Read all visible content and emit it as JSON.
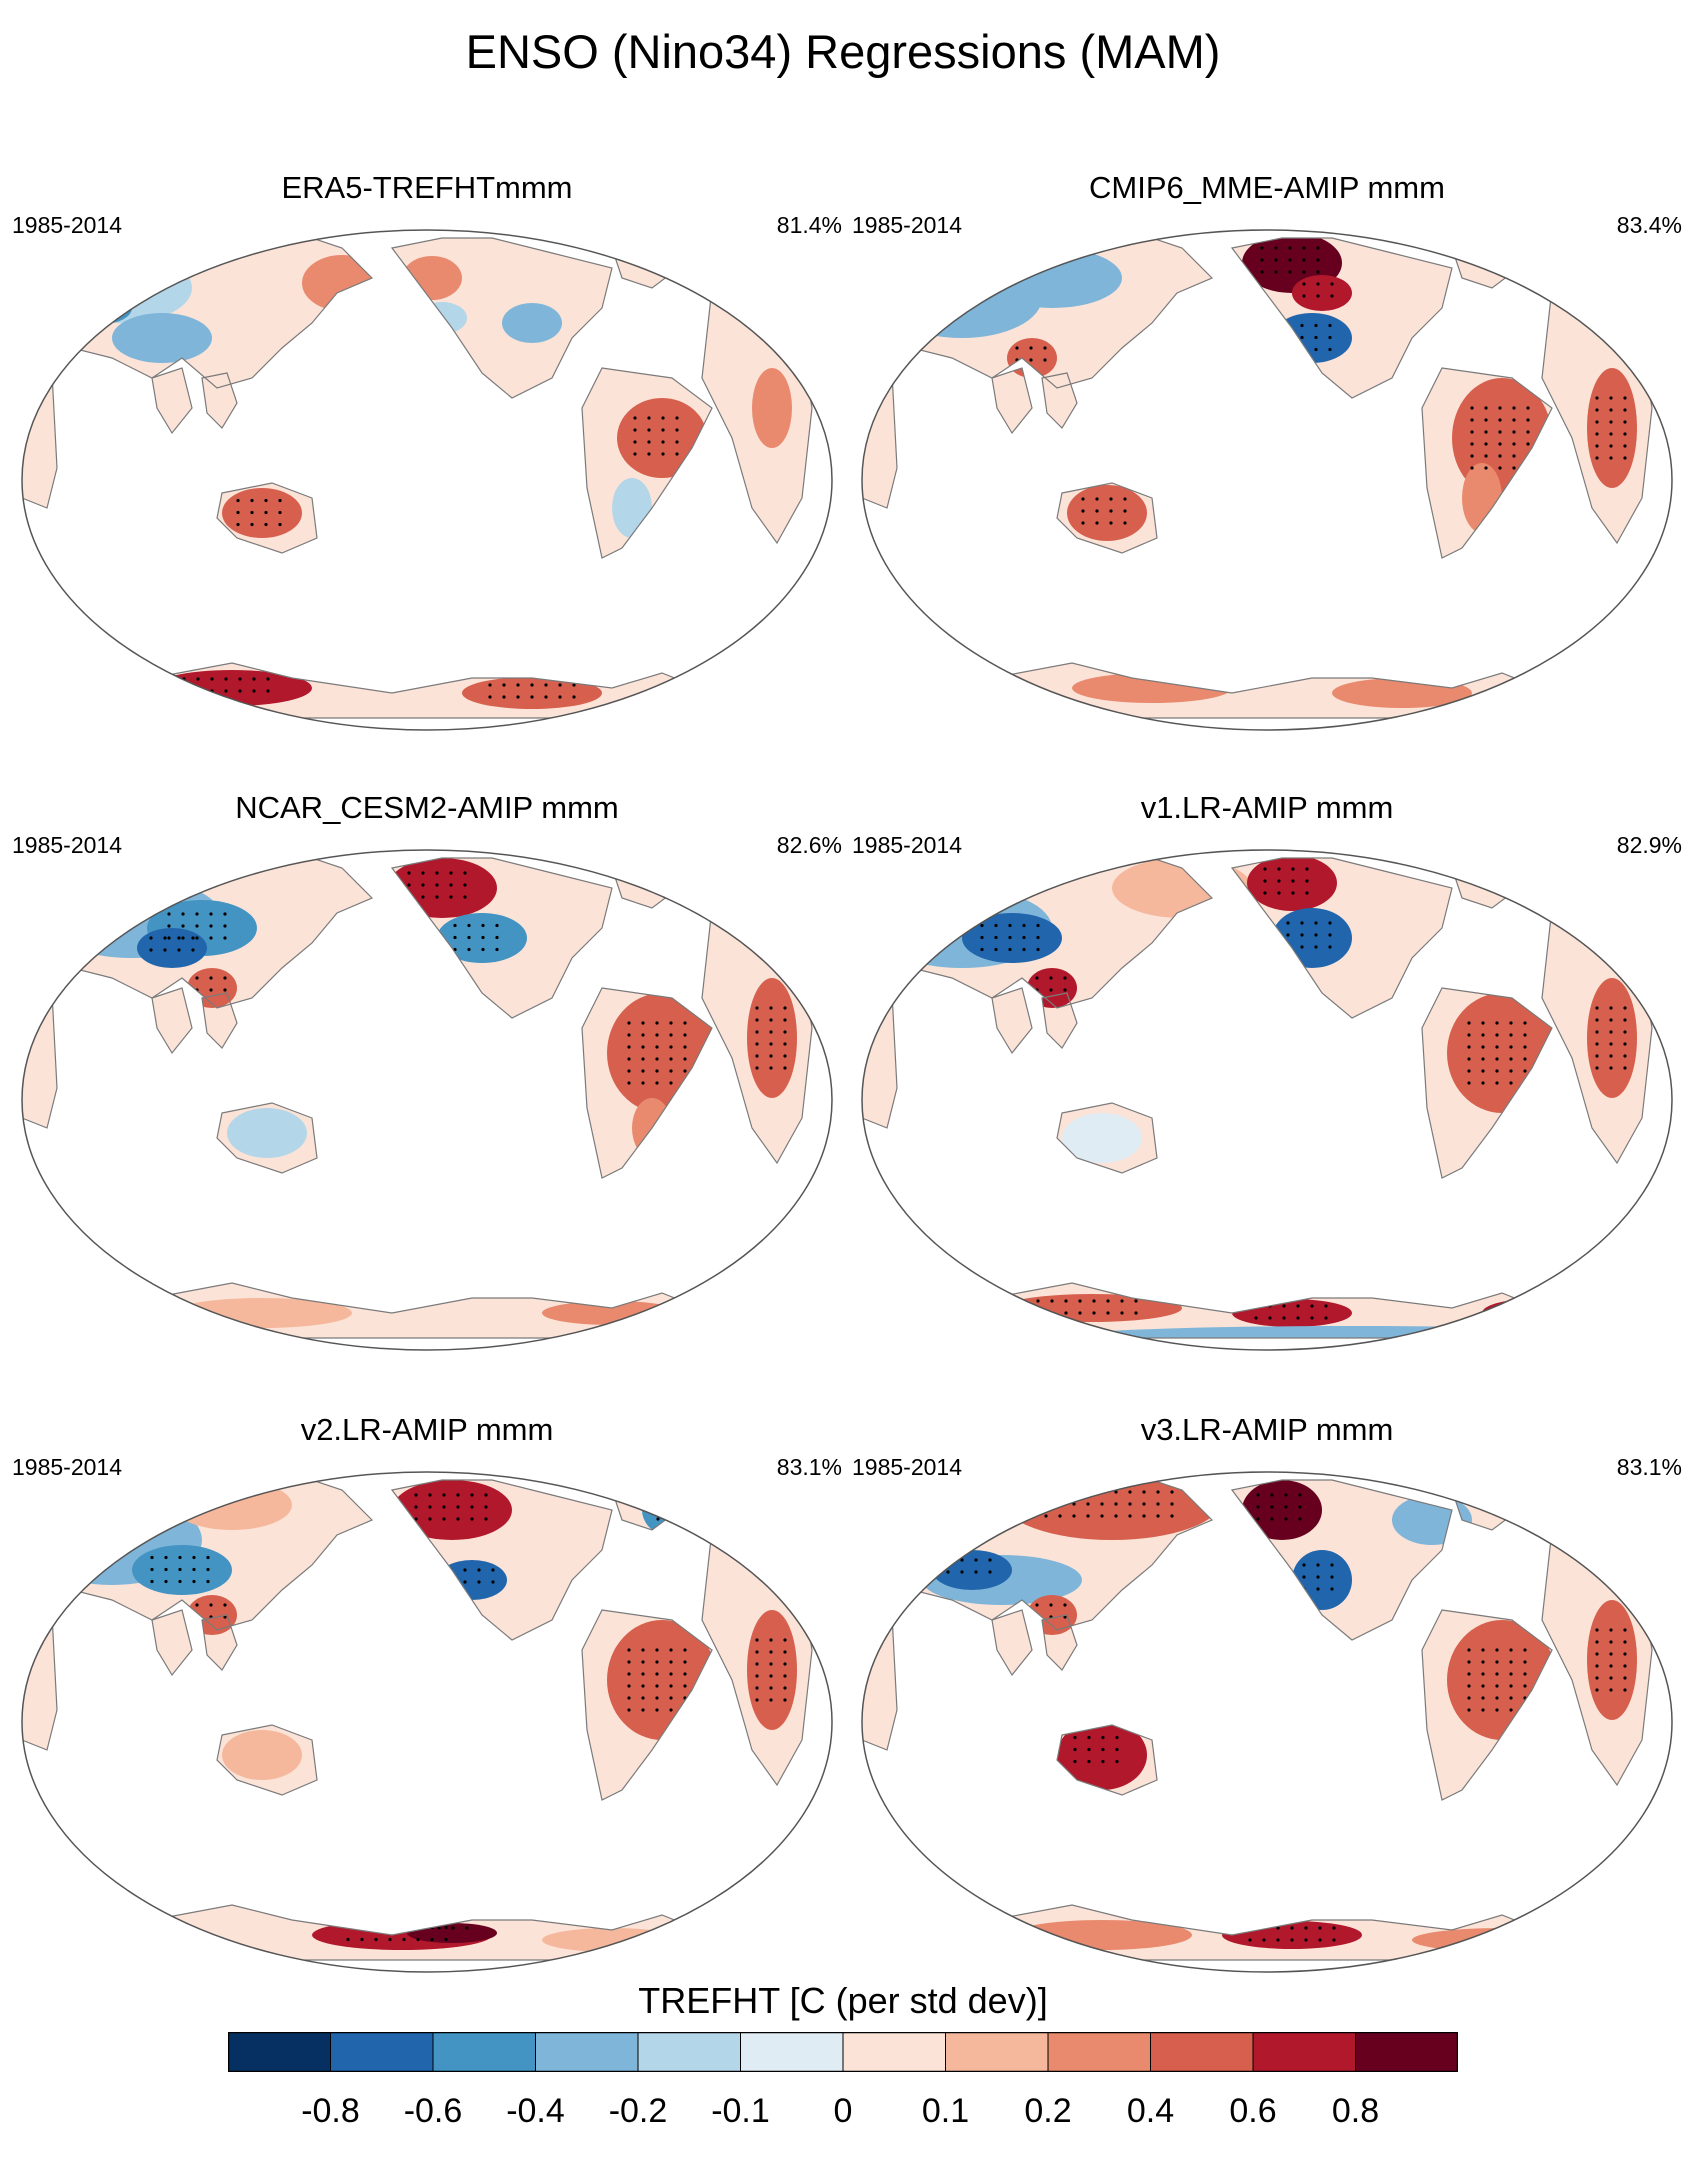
{
  "title": "ENSO (Nino34) Regressions (MAM)",
  "chart_data": {
    "type": "heatmap",
    "variable": "TREFHT",
    "colorbar": {
      "title": "TREFHT [C (per std dev)]",
      "levels": [
        "-0.8",
        "-0.6",
        "-0.4",
        "-0.2",
        "-0.1",
        "0",
        "0.1",
        "0.2",
        "0.4",
        "0.6",
        "0.8"
      ],
      "colors": [
        "#053061",
        "#2166ac",
        "#4393c3",
        "#7fb5d9",
        "#b4d6e9",
        "#e0ecf4",
        "#fbe3d8",
        "#f6b89c",
        "#e98a6e",
        "#d6604d",
        "#b2182b",
        "#67001f"
      ]
    },
    "panels": [
      {
        "title": "ERA5-TREFHTmmm",
        "period": "1985-2014",
        "pattern_correlation": "81.4%"
      },
      {
        "title": "CMIP6_MME-AMIP  mmm",
        "period": "1985-2014",
        "pattern_correlation": "83.4%"
      },
      {
        "title": "NCAR_CESM2-AMIP  mmm",
        "period": "1985-2014",
        "pattern_correlation": "82.6%"
      },
      {
        "title": "v1.LR-AMIP  mmm",
        "period": "1985-2014",
        "pattern_correlation": "82.9%"
      },
      {
        "title": "v2.LR-AMIP  mmm",
        "period": "1985-2014",
        "pattern_correlation": "83.1%"
      },
      {
        "title": "v3.LR-AMIP  mmm",
        "period": "1985-2014",
        "pattern_correlation": "83.1%"
      }
    ]
  }
}
